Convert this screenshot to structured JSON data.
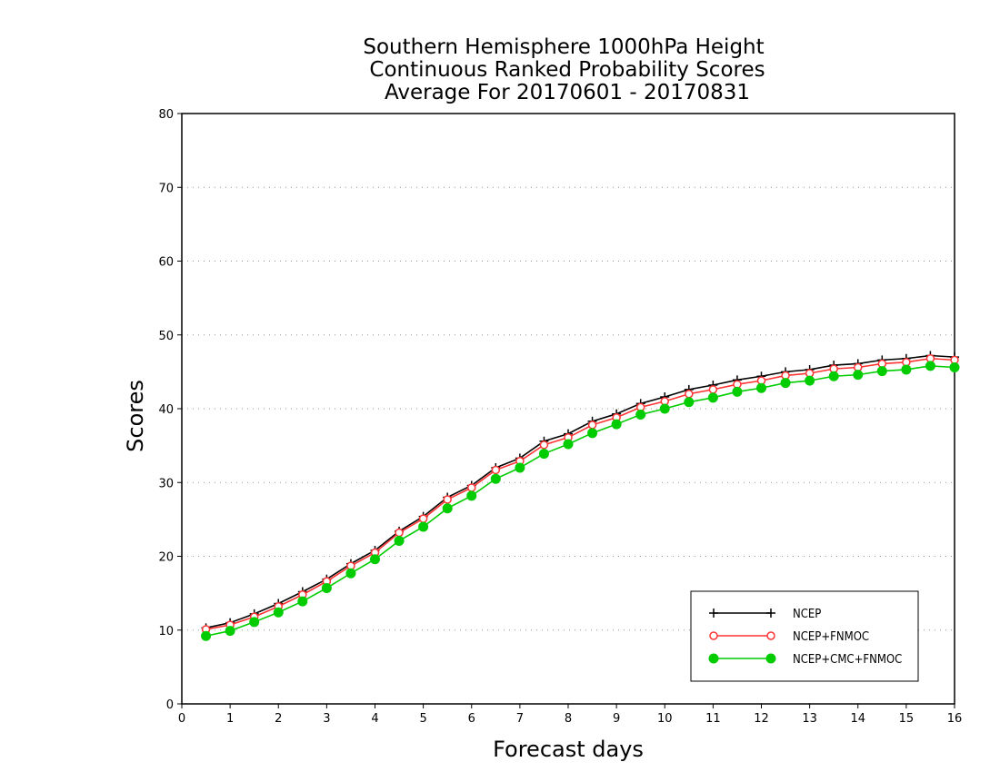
{
  "chart_data": {
    "type": "line",
    "title_lines": [
      "Southern Hemisphere 1000hPa Height",
      "Continuous Ranked Probability Scores",
      "Average For 20170601 - 20170831"
    ],
    "xlabel": "Forecast days",
    "ylabel": "Scores",
    "xlim": [
      0,
      16
    ],
    "ylim": [
      0,
      80
    ],
    "xticks": [
      0,
      1,
      2,
      3,
      4,
      5,
      6,
      7,
      8,
      9,
      10,
      11,
      12,
      13,
      14,
      15,
      16
    ],
    "yticks": [
      0,
      10,
      20,
      30,
      40,
      50,
      60,
      70,
      80
    ],
    "grid": "horizontal dotted",
    "legend_position": "bottom-right",
    "x": [
      0.5,
      1,
      1.5,
      2,
      2.5,
      3,
      3.5,
      4,
      4.5,
      5,
      5.5,
      6,
      6.5,
      7,
      7.5,
      8,
      8.5,
      9,
      9.5,
      10,
      10.5,
      11,
      11.5,
      12,
      12.5,
      13,
      13.5,
      14,
      14.5,
      15,
      15.5,
      16
    ],
    "series": [
      {
        "name": "NCEP",
        "color": "#000000",
        "marker": "plus",
        "values": [
          10.3,
          11.0,
          12.2,
          13.6,
          15.2,
          16.9,
          19.0,
          20.8,
          23.4,
          25.4,
          28.0,
          29.6,
          32.0,
          33.3,
          35.6,
          36.6,
          38.3,
          39.3,
          40.7,
          41.6,
          42.6,
          43.2,
          43.9,
          44.4,
          45.0,
          45.3,
          45.9,
          46.1,
          46.6,
          46.8,
          47.2,
          47.0
        ]
      },
      {
        "name": "NCEP+FNMOC",
        "color": "#ff3333",
        "marker": "open-circle",
        "values": [
          10.1,
          10.7,
          11.8,
          13.2,
          14.8,
          16.6,
          18.7,
          20.5,
          23.2,
          25.1,
          27.7,
          29.3,
          31.7,
          32.9,
          35.1,
          36.1,
          37.8,
          38.8,
          40.2,
          41.0,
          42.0,
          42.6,
          43.3,
          43.8,
          44.5,
          44.8,
          45.4,
          45.6,
          46.1,
          46.3,
          46.8,
          46.6
        ]
      },
      {
        "name": "NCEP+CMC+FNMOC",
        "color": "#00cc00",
        "marker": "filled-circle",
        "values": [
          9.2,
          9.9,
          11.1,
          12.4,
          13.9,
          15.7,
          17.7,
          19.6,
          22.1,
          24.0,
          26.5,
          28.2,
          30.5,
          32.0,
          33.9,
          35.2,
          36.7,
          37.9,
          39.2,
          40.0,
          40.9,
          41.5,
          42.3,
          42.8,
          43.5,
          43.8,
          44.4,
          44.6,
          45.1,
          45.3,
          45.8,
          45.6
        ]
      }
    ]
  }
}
